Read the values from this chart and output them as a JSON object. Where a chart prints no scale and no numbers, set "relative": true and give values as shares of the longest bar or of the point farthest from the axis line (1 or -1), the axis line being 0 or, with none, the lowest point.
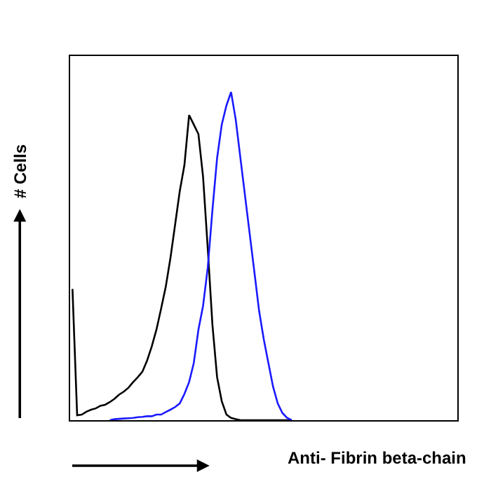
{
  "chart_data": {
    "type": "line",
    "relative": true,
    "xlabel": "Anti- Fibrin beta-chain",
    "ylabel": "# Cells",
    "marker": "none",
    "line_style": "solid",
    "categories": [
      null,
      null,
      null,
      null,
      null,
      null,
      null,
      null,
      null,
      null,
      null,
      null,
      null,
      null,
      null,
      null,
      null,
      null,
      null,
      null,
      null,
      null,
      null,
      null,
      null,
      null,
      null,
      null,
      null,
      null,
      null,
      null,
      null,
      null,
      null,
      null,
      null,
      null,
      null,
      null,
      null,
      null,
      null,
      null,
      null,
      null,
      null,
      null,
      null,
      null,
      null,
      null,
      null,
      null,
      null,
      null,
      null,
      null,
      null,
      null,
      null,
      null,
      null,
      null,
      null,
      null,
      null,
      null,
      null,
      null,
      null,
      null,
      null,
      null,
      null,
      null,
      null,
      null,
      null,
      null,
      null,
      null,
      null
    ],
    "series": [
      {
        "color": "#000000",
        "values": [
          0.4,
          0.015,
          0.017,
          0.026,
          0.032,
          0.036,
          0.044,
          0.047,
          0.055,
          0.065,
          0.078,
          0.087,
          0.099,
          0.116,
          0.131,
          0.148,
          0.182,
          0.225,
          0.276,
          0.34,
          0.407,
          0.494,
          0.596,
          0.698,
          0.778,
          0.93,
          0.901,
          0.872,
          0.741,
          0.523,
          0.291,
          0.131,
          0.058,
          0.017,
          0.007,
          0.003,
          0,
          0,
          0,
          0,
          0,
          0,
          0,
          0,
          0,
          0,
          0,
          0,
          null,
          null,
          null,
          null,
          null,
          null,
          null,
          null,
          null,
          null,
          null,
          null,
          null,
          null,
          null,
          null,
          null,
          null,
          null,
          null,
          null,
          null,
          null,
          null,
          null,
          null,
          null,
          null,
          null,
          null,
          null,
          null,
          null,
          null,
          null
        ]
      },
      {
        "color": "#1a1aff",
        "values": [
          null,
          null,
          null,
          null,
          null,
          null,
          null,
          null,
          0,
          0.003,
          0.004,
          0.005,
          0.006,
          0.007,
          0.009,
          0.01,
          0.012,
          0.012,
          0.017,
          0.017,
          0.025,
          0.032,
          0.04,
          0.051,
          0.08,
          0.116,
          0.174,
          0.276,
          0.349,
          0.465,
          0.64,
          0.799,
          0.901,
          0.959,
          1.0,
          0.916,
          0.799,
          0.683,
          0.567,
          0.451,
          0.334,
          0.247,
          0.174,
          0.102,
          0.051,
          0.022,
          0.007,
          0,
          null,
          null,
          null,
          null,
          null,
          null,
          null,
          null,
          null,
          null,
          null,
          null,
          null,
          null,
          null,
          null,
          null,
          null,
          null,
          null,
          null,
          null,
          null,
          null,
          null,
          null,
          null,
          null,
          null,
          null,
          null,
          null,
          null,
          null,
          null
        ]
      }
    ]
  }
}
